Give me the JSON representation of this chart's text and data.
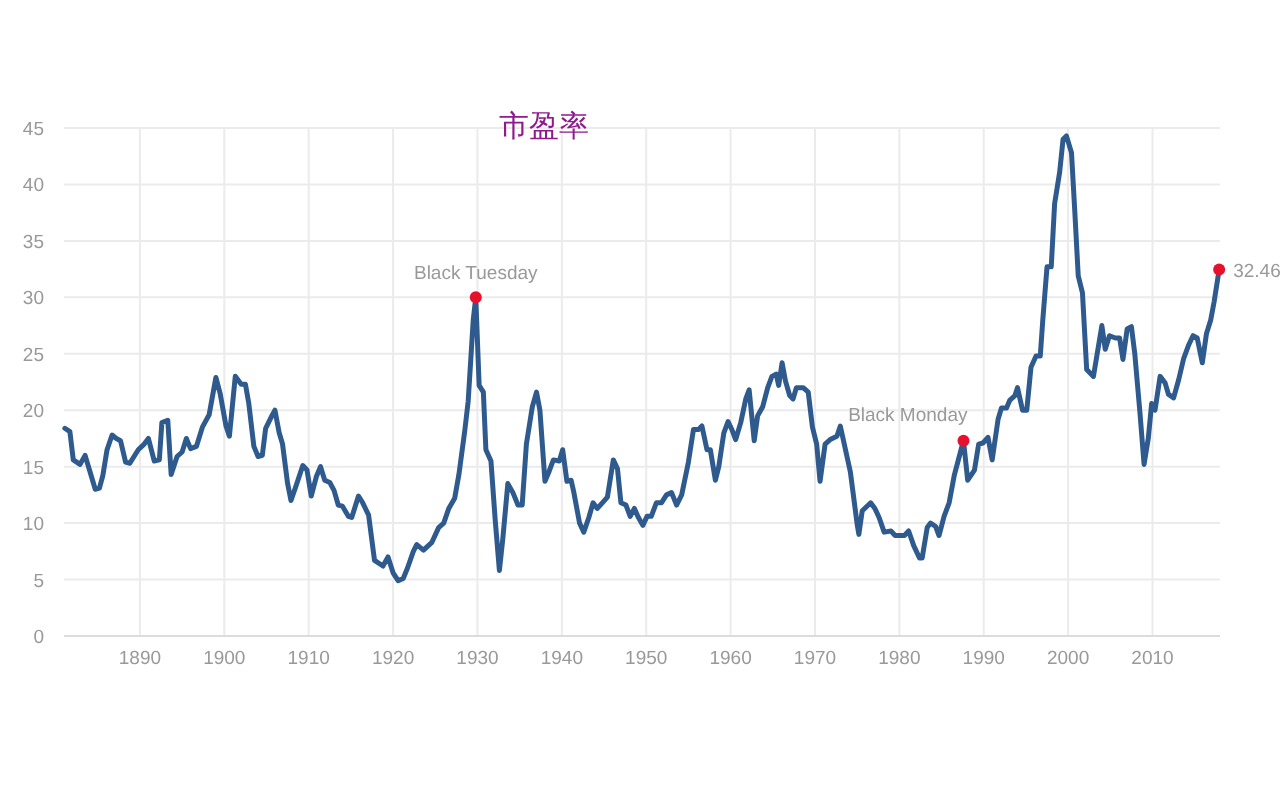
{
  "chart_data": {
    "type": "line",
    "title": "市盈率",
    "x": [
      1881.1,
      1881.7,
      1882.1,
      1882.9,
      1883.5,
      1884.1,
      1884.7,
      1885.2,
      1885.6,
      1886.1,
      1886.7,
      1887.2,
      1887.7,
      1888.3,
      1888.8,
      1889.8,
      1890.5,
      1891.0,
      1891.7,
      1892.3,
      1892.6,
      1893.3,
      1893.7,
      1894.4,
      1895.0,
      1895.5,
      1896.0,
      1896.7,
      1897.4,
      1898.2,
      1899.0,
      1899.5,
      1900.2,
      1900.6,
      1901.3,
      1902.0,
      1902.5,
      1902.9,
      1903.5,
      1904.0,
      1904.5,
      1904.9,
      1905.7,
      1906.0,
      1906.5,
      1906.9,
      1907.5,
      1907.9,
      1908.5,
      1909.3,
      1909.8,
      1910.3,
      1910.9,
      1911.4,
      1911.9,
      1912.5,
      1913.0,
      1913.5,
      1914.0,
      1914.7,
      1915.1,
      1915.9,
      1916.4,
      1917.1,
      1917.8,
      1918.8,
      1919.4,
      1920.0,
      1920.6,
      1921.2,
      1921.7,
      1922.4,
      1922.8,
      1923.6,
      1924.6,
      1925.4,
      1926.0,
      1926.6,
      1927.3,
      1927.8,
      1928.5,
      1928.9,
      1929.5,
      1929.8,
      1930.2,
      1930.7,
      1931.0,
      1931.6,
      1932.1,
      1932.6,
      1933.0,
      1933.6,
      1934.2,
      1934.8,
      1935.3,
      1935.8,
      1936.5,
      1937.0,
      1937.4,
      1938.0,
      1938.5,
      1939.0,
      1939.7,
      1940.1,
      1940.6,
      1941.1,
      1941.4,
      1942.1,
      1942.6,
      1943.2,
      1943.7,
      1944.2,
      1944.8,
      1945.4,
      1946.1,
      1946.6,
      1947.0,
      1947.6,
      1948.1,
      1948.6,
      1949.0,
      1949.6,
      1950.1,
      1950.6,
      1951.2,
      1951.8,
      1952.4,
      1953.0,
      1953.6,
      1954.2,
      1955.0,
      1955.6,
      1956.2,
      1956.6,
      1957.2,
      1957.6,
      1958.2,
      1958.6,
      1959.2,
      1959.7,
      1960.2,
      1960.6,
      1961.2,
      1961.8,
      1962.2,
      1962.8,
      1963.2,
      1963.8,
      1964.4,
      1964.9,
      1965.4,
      1965.7,
      1966.1,
      1966.5,
      1967.0,
      1967.4,
      1967.8,
      1968.6,
      1969.2,
      1969.7,
      1970.2,
      1970.6,
      1971.2,
      1971.8,
      1972.6,
      1973.0,
      1974.2,
      1975.0,
      1975.2,
      1975.6,
      1976.6,
      1977.1,
      1977.6,
      1978.2,
      1979.0,
      1979.5,
      1980.6,
      1981.1,
      1981.7,
      1982.4,
      1982.7,
      1983.3,
      1983.7,
      1984.3,
      1984.7,
      1985.3,
      1985.9,
      1986.5,
      1987.1,
      1987.6,
      1988.1,
      1988.9,
      1989.4,
      1989.9,
      1990.5,
      1991.0,
      1991.7,
      1992.1,
      1992.7,
      1993.1,
      1993.7,
      1994.0,
      1994.6,
      1995.1,
      1995.6,
      1996.2,
      1996.7,
      1997.0,
      1997.5,
      1998.0,
      1998.4,
      1999.0,
      1999.4,
      1999.8,
      2000.4,
      2000.8,
      2001.2,
      2001.7,
      2002.2,
      2003.0,
      2003.4,
      2004.0,
      2004.4,
      2004.9,
      2005.6,
      2006.1,
      2006.5,
      2007.0,
      2007.5,
      2007.9,
      2008.5,
      2009.0,
      2009.5,
      2009.9,
      2010.3,
      2010.9,
      2011.5,
      2011.9,
      2012.5,
      2013.1,
      2013.7,
      2014.3,
      2014.8,
      2015.3,
      2015.9,
      2016.4,
      2016.9,
      2017.3,
      2017.9
    ],
    "series": [
      {
        "color": "#2f5a8e",
        "values": [
          18.4,
          18.1,
          15.6,
          15.2,
          16.0,
          14.5,
          13.0,
          13.1,
          14.2,
          16.5,
          17.8,
          17.5,
          17.3,
          15.4,
          15.3,
          16.5,
          17.0,
          17.5,
          15.5,
          15.6,
          18.9,
          19.1,
          14.3,
          15.9,
          16.3,
          17.5,
          16.6,
          16.8,
          18.5,
          19.6,
          22.9,
          21.5,
          18.6,
          17.7,
          23.0,
          22.3,
          22.3,
          20.6,
          16.8,
          15.9,
          16.0,
          18.4,
          19.6,
          20.0,
          18.0,
          17.0,
          13.5,
          12.0,
          13.3,
          15.1,
          14.7,
          12.4,
          14.1,
          15.0,
          13.8,
          13.6,
          12.9,
          11.6,
          11.5,
          10.6,
          10.5,
          12.4,
          11.8,
          10.7,
          6.7,
          6.2,
          7.0,
          5.6,
          4.9,
          5.1,
          6.0,
          7.5,
          8.1,
          7.6,
          8.3,
          9.6,
          10.0,
          11.3,
          12.2,
          14.3,
          18.2,
          20.8,
          28.0,
          30.0,
          22.2,
          21.6,
          16.5,
          15.5,
          10.3,
          5.8,
          8.6,
          13.5,
          12.7,
          11.6,
          11.6,
          17.0,
          20.3,
          21.6,
          20.0,
          13.7,
          14.6,
          15.6,
          15.5,
          16.5,
          13.7,
          13.8,
          12.8,
          10.0,
          9.2,
          10.5,
          11.8,
          11.3,
          11.8,
          12.3,
          15.6,
          14.8,
          11.8,
          11.6,
          10.6,
          11.3,
          10.6,
          9.8,
          10.6,
          10.6,
          11.8,
          11.8,
          12.5,
          12.7,
          11.6,
          12.5,
          15.4,
          18.3,
          18.3,
          18.6,
          16.5,
          16.5,
          13.8,
          15.0,
          18.0,
          19.0,
          18.2,
          17.4,
          18.9,
          21.0,
          21.8,
          17.3,
          19.5,
          20.3,
          22.0,
          23.0,
          23.2,
          22.2,
          24.2,
          22.6,
          21.3,
          21.0,
          22.0,
          22.0,
          21.6,
          18.5,
          17.0,
          13.7,
          17.0,
          17.4,
          17.7,
          18.6,
          14.5,
          9.9,
          9.0,
          11.1,
          11.8,
          11.3,
          10.5,
          9.2,
          9.3,
          8.9,
          8.9,
          9.3,
          8.0,
          6.9,
          6.9,
          9.6,
          10.0,
          9.7,
          8.9,
          10.6,
          11.8,
          14.2,
          15.9,
          17.3,
          13.8,
          14.7,
          17.0,
          17.1,
          17.6,
          15.6,
          19.2,
          20.2,
          20.2,
          20.9,
          21.3,
          22.0,
          20.0,
          20.0,
          23.8,
          24.8,
          24.8,
          28.0,
          32.7,
          32.7,
          38.3,
          41.1,
          44.0,
          44.3,
          42.8,
          37.5,
          31.9,
          30.4,
          23.6,
          23.0,
          24.8,
          27.5,
          25.4,
          26.6,
          26.4,
          26.4,
          24.5,
          27.2,
          27.4,
          25.0,
          19.9,
          15.2,
          17.5,
          20.6,
          20.0,
          23.0,
          22.4,
          21.4,
          21.1,
          22.7,
          24.6,
          25.8,
          26.6,
          26.4,
          24.2,
          26.8,
          28.0,
          29.6,
          32.46
        ]
      }
    ],
    "xlim": [
      1881,
      2018
    ],
    "xticks": [
      1890,
      1900,
      1910,
      1920,
      1930,
      1940,
      1950,
      1960,
      1970,
      1980,
      1990,
      2000,
      2010
    ],
    "ylim": [
      0,
      45
    ],
    "yticks": [
      0,
      5,
      10,
      15,
      20,
      25,
      30,
      35,
      40,
      45
    ],
    "grid": true,
    "marker": "none",
    "line_style": "solid",
    "annotations": [
      {
        "text": "Black Tuesday",
        "x": 1929.8,
        "y": 30
      },
      {
        "text": "Black Monday",
        "x": 1987.6,
        "y": 17.3
      },
      {
        "text": "32.46",
        "x": 2017.9,
        "y": 32.46
      }
    ]
  }
}
